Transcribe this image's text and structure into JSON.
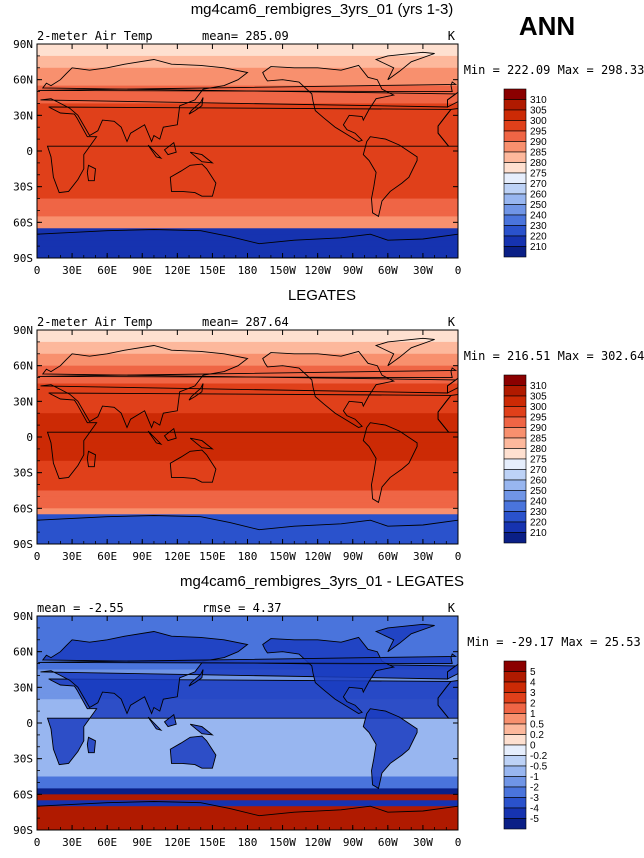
{
  "figure": {
    "season": "ANN"
  },
  "chart_data": [
    {
      "type": "heatmap",
      "title": "mg4cam6_rembigres_3yrs_01 (yrs 1-3)",
      "field": "2-meter Air Temp",
      "stat_left": "",
      "stat_mid": "mean= 285.09",
      "units": "K",
      "minmax": "Min = 222.09 Max = 298.33",
      "x_ticks": [
        "0",
        "30E",
        "60E",
        "90E",
        "120E",
        "150E",
        "180",
        "150W",
        "120W",
        "90W",
        "60W",
        "30W",
        "0"
      ],
      "y_ticks": [
        "90N",
        "60N",
        "30N",
        "0",
        "30S",
        "60S",
        "90S"
      ],
      "colorbar": {
        "labels": [
          "310",
          "305",
          "300",
          "295",
          "290",
          "285",
          "280",
          "275",
          "270",
          "260",
          "250",
          "240",
          "230",
          "220",
          "210"
        ],
        "colors": [
          "#8b0000",
          "#b01a00",
          "#cc2a05",
          "#e0401a",
          "#ef6545",
          "#f8906e",
          "#fdb89c",
          "#fee0d0",
          "#e6eefc",
          "#bdd2f6",
          "#98b6f0",
          "#7095e6",
          "#4a74dc",
          "#2a52cc",
          "#1633b0",
          "#0a1f86"
        ]
      }
    },
    {
      "type": "heatmap",
      "title": "LEGATES",
      "field": "2-meter Air Temp",
      "stat_left": "",
      "stat_mid": "mean= 287.64",
      "units": "K",
      "minmax": "Min = 216.51 Max = 302.64",
      "x_ticks": [
        "0",
        "30E",
        "60E",
        "90E",
        "120E",
        "150E",
        "180",
        "150W",
        "120W",
        "90W",
        "60W",
        "30W",
        "0"
      ],
      "y_ticks": [
        "90N",
        "60N",
        "30N",
        "0",
        "30S",
        "60S",
        "90S"
      ],
      "colorbar": {
        "labels": [
          "310",
          "305",
          "300",
          "295",
          "290",
          "285",
          "280",
          "275",
          "270",
          "260",
          "250",
          "240",
          "230",
          "220",
          "210"
        ],
        "colors": [
          "#8b0000",
          "#b01a00",
          "#cc2a05",
          "#e0401a",
          "#ef6545",
          "#f8906e",
          "#fdb89c",
          "#fee0d0",
          "#e6eefc",
          "#bdd2f6",
          "#98b6f0",
          "#7095e6",
          "#4a74dc",
          "#2a52cc",
          "#1633b0",
          "#0a1f86"
        ]
      }
    },
    {
      "type": "heatmap",
      "title": "mg4cam6_rembigres_3yrs_01 - LEGATES",
      "field": "",
      "stat_left": "mean = -2.55",
      "stat_mid": "rmse = 4.37",
      "units": "K",
      "minmax": "Min = -29.17 Max = 25.53",
      "x_ticks": [
        "0",
        "30E",
        "60E",
        "90E",
        "120E",
        "150E",
        "180",
        "150W",
        "120W",
        "90W",
        "60W",
        "30W",
        "0"
      ],
      "y_ticks": [
        "90N",
        "60N",
        "30N",
        "0",
        "30S",
        "60S",
        "90S"
      ],
      "colorbar": {
        "labels": [
          "5",
          "4",
          "3",
          "2",
          "1",
          "0.5",
          "0.2",
          "0",
          "-0.2",
          "-0.5",
          "-1",
          "-2",
          "-3",
          "-4",
          "-5"
        ],
        "colors": [
          "#8b0000",
          "#b01a00",
          "#cc2a05",
          "#e0401a",
          "#ef6545",
          "#f8906e",
          "#fdb89c",
          "#fee0d0",
          "#e6eefc",
          "#bdd2f6",
          "#98b6f0",
          "#7095e6",
          "#4a74dc",
          "#2a52cc",
          "#1633b0",
          "#0a1f86"
        ]
      }
    }
  ]
}
